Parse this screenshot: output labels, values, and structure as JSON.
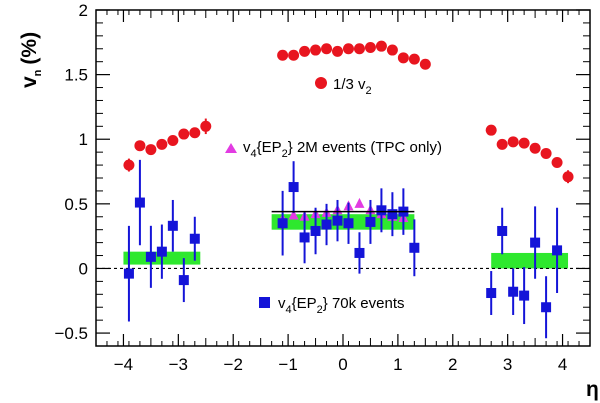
{
  "chart_data": {
    "type": "scatter",
    "ylabel": "v",
    "ylabel_sub": "n",
    "ylabel_unit": "(%)",
    "xlabel": "η",
    "xlim": [
      -4.5,
      4.5
    ],
    "ylim": [
      -0.6,
      2.0
    ],
    "x_ticks": [
      -4,
      -3,
      -2,
      -1,
      0,
      1,
      2,
      3,
      4
    ],
    "x_tick_labels": [
      "−4",
      "−3",
      "−2",
      "−1",
      "0",
      "1",
      "2",
      "3",
      "4"
    ],
    "y_ticks": [
      -0.5,
      0,
      0.5,
      1,
      1.5,
      2
    ],
    "y_tick_labels": [
      "−0.5",
      "0",
      "0.5",
      "1",
      "1.5",
      "2"
    ],
    "zero_line": "dashed",
    "grid": false,
    "annotations": [
      {
        "text": "1/3 v",
        "sub": "2",
        "marker": "circle",
        "color": "#e8151f"
      },
      {
        "text": "v",
        "sub": "4",
        "text2": "{EP",
        "sub2": "2",
        "text3": "} 2M events (TPC only)",
        "marker": "triangle",
        "color": "#e23be2"
      },
      {
        "text": "v",
        "sub": "4",
        "text2": "{EP",
        "sub2": "2",
        "text3": "} 70k events",
        "marker": "square",
        "color": "#1414d8"
      }
    ],
    "series": [
      {
        "marker": "circle",
        "color": "#e8151f",
        "points": [
          {
            "x": -3.9,
            "y": 0.8,
            "err": 0.05
          },
          {
            "x": -3.7,
            "y": 0.95,
            "err": 0.03
          },
          {
            "x": -3.5,
            "y": 0.92,
            "err": 0.02
          },
          {
            "x": -3.3,
            "y": 0.96,
            "err": 0.02
          },
          {
            "x": -3.1,
            "y": 0.99,
            "err": 0.02
          },
          {
            "x": -2.9,
            "y": 1.04,
            "err": 0.02
          },
          {
            "x": -2.7,
            "y": 1.05,
            "err": 0.02
          },
          {
            "x": -2.5,
            "y": 1.1,
            "err": 0.06
          },
          {
            "x": -1.1,
            "y": 1.65,
            "err": 0.01
          },
          {
            "x": -0.9,
            "y": 1.65,
            "err": 0.01
          },
          {
            "x": -0.7,
            "y": 1.68,
            "err": 0.01
          },
          {
            "x": -0.5,
            "y": 1.69,
            "err": 0.01
          },
          {
            "x": -0.3,
            "y": 1.7,
            "err": 0.01
          },
          {
            "x": -0.1,
            "y": 1.68,
            "err": 0.01
          },
          {
            "x": 0.1,
            "y": 1.7,
            "err": 0.01
          },
          {
            "x": 0.3,
            "y": 1.7,
            "err": 0.01
          },
          {
            "x": 0.5,
            "y": 1.71,
            "err": 0.01
          },
          {
            "x": 0.7,
            "y": 1.72,
            "err": 0.01
          },
          {
            "x": 0.9,
            "y": 1.69,
            "err": 0.01
          },
          {
            "x": 1.1,
            "y": 1.63,
            "err": 0.01
          },
          {
            "x": 1.3,
            "y": 1.62,
            "err": 0.01
          },
          {
            "x": 1.5,
            "y": 1.58,
            "err": 0.01
          },
          {
            "x": 2.7,
            "y": 1.07,
            "err": 0.04
          },
          {
            "x": 2.9,
            "y": 0.96,
            "err": 0.02
          },
          {
            "x": 3.1,
            "y": 0.98,
            "err": 0.02
          },
          {
            "x": 3.3,
            "y": 0.97,
            "err": 0.02
          },
          {
            "x": 3.5,
            "y": 0.93,
            "err": 0.02
          },
          {
            "x": 3.7,
            "y": 0.89,
            "err": 0.02
          },
          {
            "x": 3.9,
            "y": 0.82,
            "err": 0.03
          },
          {
            "x": 4.1,
            "y": 0.71,
            "err": 0.05
          }
        ]
      },
      {
        "marker": "triangle",
        "color": "#e23be2",
        "points": [
          {
            "x": -1.1,
            "y": 0.38
          },
          {
            "x": -0.9,
            "y": 0.41
          },
          {
            "x": -0.7,
            "y": 0.4
          },
          {
            "x": -0.5,
            "y": 0.42
          },
          {
            "x": -0.3,
            "y": 0.43
          },
          {
            "x": -0.1,
            "y": 0.45
          },
          {
            "x": 0.1,
            "y": 0.48
          },
          {
            "x": 0.3,
            "y": 0.5
          },
          {
            "x": 0.5,
            "y": 0.45
          },
          {
            "x": 0.7,
            "y": 0.42
          },
          {
            "x": 0.9,
            "y": 0.4
          },
          {
            "x": 1.1,
            "y": 0.39
          }
        ]
      },
      {
        "marker": "square",
        "color": "#1414d8",
        "points": [
          {
            "x": -3.9,
            "y": -0.04,
            "err": 0.37
          },
          {
            "x": -3.7,
            "y": 0.51,
            "err": 0.33
          },
          {
            "x": -3.5,
            "y": 0.09,
            "err": 0.24
          },
          {
            "x": -3.3,
            "y": 0.13,
            "err": 0.21
          },
          {
            "x": -3.1,
            "y": 0.33,
            "err": 0.2
          },
          {
            "x": -2.9,
            "y": -0.09,
            "err": 0.17
          },
          {
            "x": -2.7,
            "y": 0.23,
            "err": 0.17
          },
          {
            "x": -1.1,
            "y": 0.35,
            "err": 0.25
          },
          {
            "x": -0.9,
            "y": 0.63,
            "err": 0.2
          },
          {
            "x": -0.7,
            "y": 0.24,
            "err": 0.2
          },
          {
            "x": -0.5,
            "y": 0.29,
            "err": 0.18
          },
          {
            "x": -0.3,
            "y": 0.34,
            "err": 0.16
          },
          {
            "x": -0.1,
            "y": 0.37,
            "err": 0.16
          },
          {
            "x": 0.1,
            "y": 0.35,
            "err": 0.16
          },
          {
            "x": 0.3,
            "y": 0.12,
            "err": 0.16
          },
          {
            "x": 0.5,
            "y": 0.36,
            "err": 0.17
          },
          {
            "x": 0.7,
            "y": 0.45,
            "err": 0.17
          },
          {
            "x": 0.9,
            "y": 0.42,
            "err": 0.17
          },
          {
            "x": 1.1,
            "y": 0.44,
            "err": 0.18
          },
          {
            "x": 1.3,
            "y": 0.16,
            "err": 0.22
          },
          {
            "x": 2.7,
            "y": -0.19,
            "err": 0.17
          },
          {
            "x": 2.9,
            "y": 0.29,
            "err": 0.18
          },
          {
            "x": 3.1,
            "y": -0.18,
            "err": 0.18
          },
          {
            "x": 3.3,
            "y": -0.21,
            "err": 0.22
          },
          {
            "x": 3.5,
            "y": 0.2,
            "err": 0.28
          },
          {
            "x": 3.7,
            "y": -0.3,
            "err": 0.24
          },
          {
            "x": 3.9,
            "y": 0.14,
            "err": 0.33
          }
        ]
      },
      {
        "marker": "band",
        "color": "#2ee82e",
        "bands": [
          {
            "x0": -4.0,
            "x1": -2.6,
            "y0": 0.03,
            "y1": 0.13
          },
          {
            "x0": -1.3,
            "x1": 1.3,
            "y0": 0.3,
            "y1": 0.42
          },
          {
            "x0": 2.7,
            "x1": 4.1,
            "y0": 0.0,
            "y1": 0.12
          }
        ]
      },
      {
        "marker": "line",
        "color": "#000000",
        "segments": [
          {
            "x0": -1.3,
            "x1": 1.3,
            "y": 0.44
          }
        ]
      }
    ]
  }
}
